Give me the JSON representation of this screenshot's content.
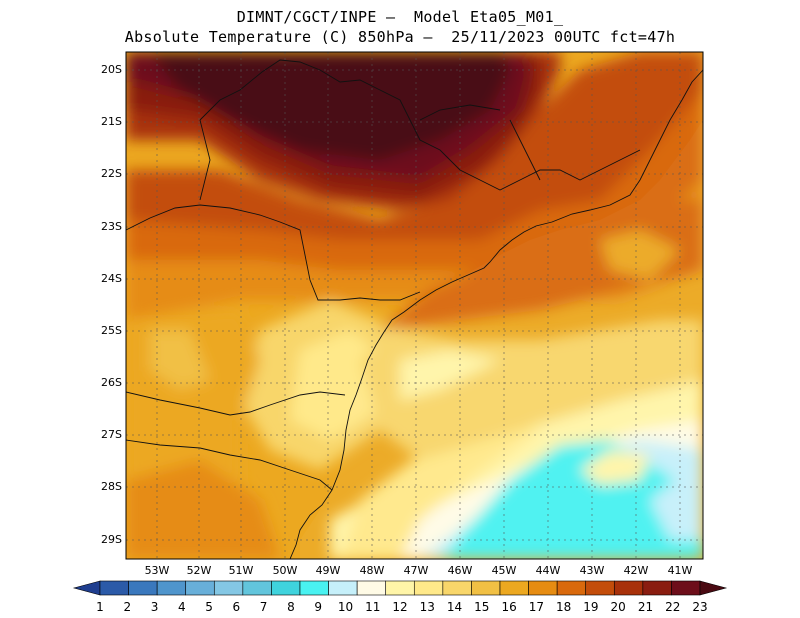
{
  "header": {
    "line1": "DIMNT/CGCT/INPE —  Model Eta05_M01_",
    "line2": "Absolute Temperature (C) 850hPa —  25/11/2023 00UTC fct=47h"
  },
  "map": {
    "lat_labels": [
      "20S",
      "21S",
      "22S",
      "23S",
      "24S",
      "25S",
      "26S",
      "27S",
      "28S",
      "29S"
    ],
    "lon_labels": [
      "53W",
      "52W",
      "51W",
      "50W",
      "49W",
      "48W",
      "47W",
      "46W",
      "45W",
      "44W",
      "43W",
      "42W",
      "41W"
    ],
    "extent": {
      "lon_min": -53.8,
      "lon_max": -40.3,
      "lat_min": -29.4,
      "lat_max": -19.8
    }
  },
  "colorbar": {
    "labels": [
      "1",
      "2",
      "3",
      "4",
      "5",
      "6",
      "7",
      "8",
      "9",
      "10",
      "11",
      "12",
      "13",
      "14",
      "15",
      "16",
      "17",
      "18",
      "19",
      "20",
      "21",
      "22",
      "23"
    ],
    "colors": [
      "#1f3e8f",
      "#2b5aa8",
      "#3a78bd",
      "#4f95cc",
      "#68afd9",
      "#84c7e4",
      "#62c5dc",
      "#3fd3dd",
      "#49f2f1",
      "#c6f0fa",
      "#fffbe6",
      "#fff5a8",
      "#ffe98a",
      "#f8d66a",
      "#f1c044",
      "#eca820",
      "#e68c12",
      "#d9690c",
      "#c34d0a",
      "#a8310a",
      "#8a1d10",
      "#6d0e1a",
      "#4a0a12"
    ]
  }
}
